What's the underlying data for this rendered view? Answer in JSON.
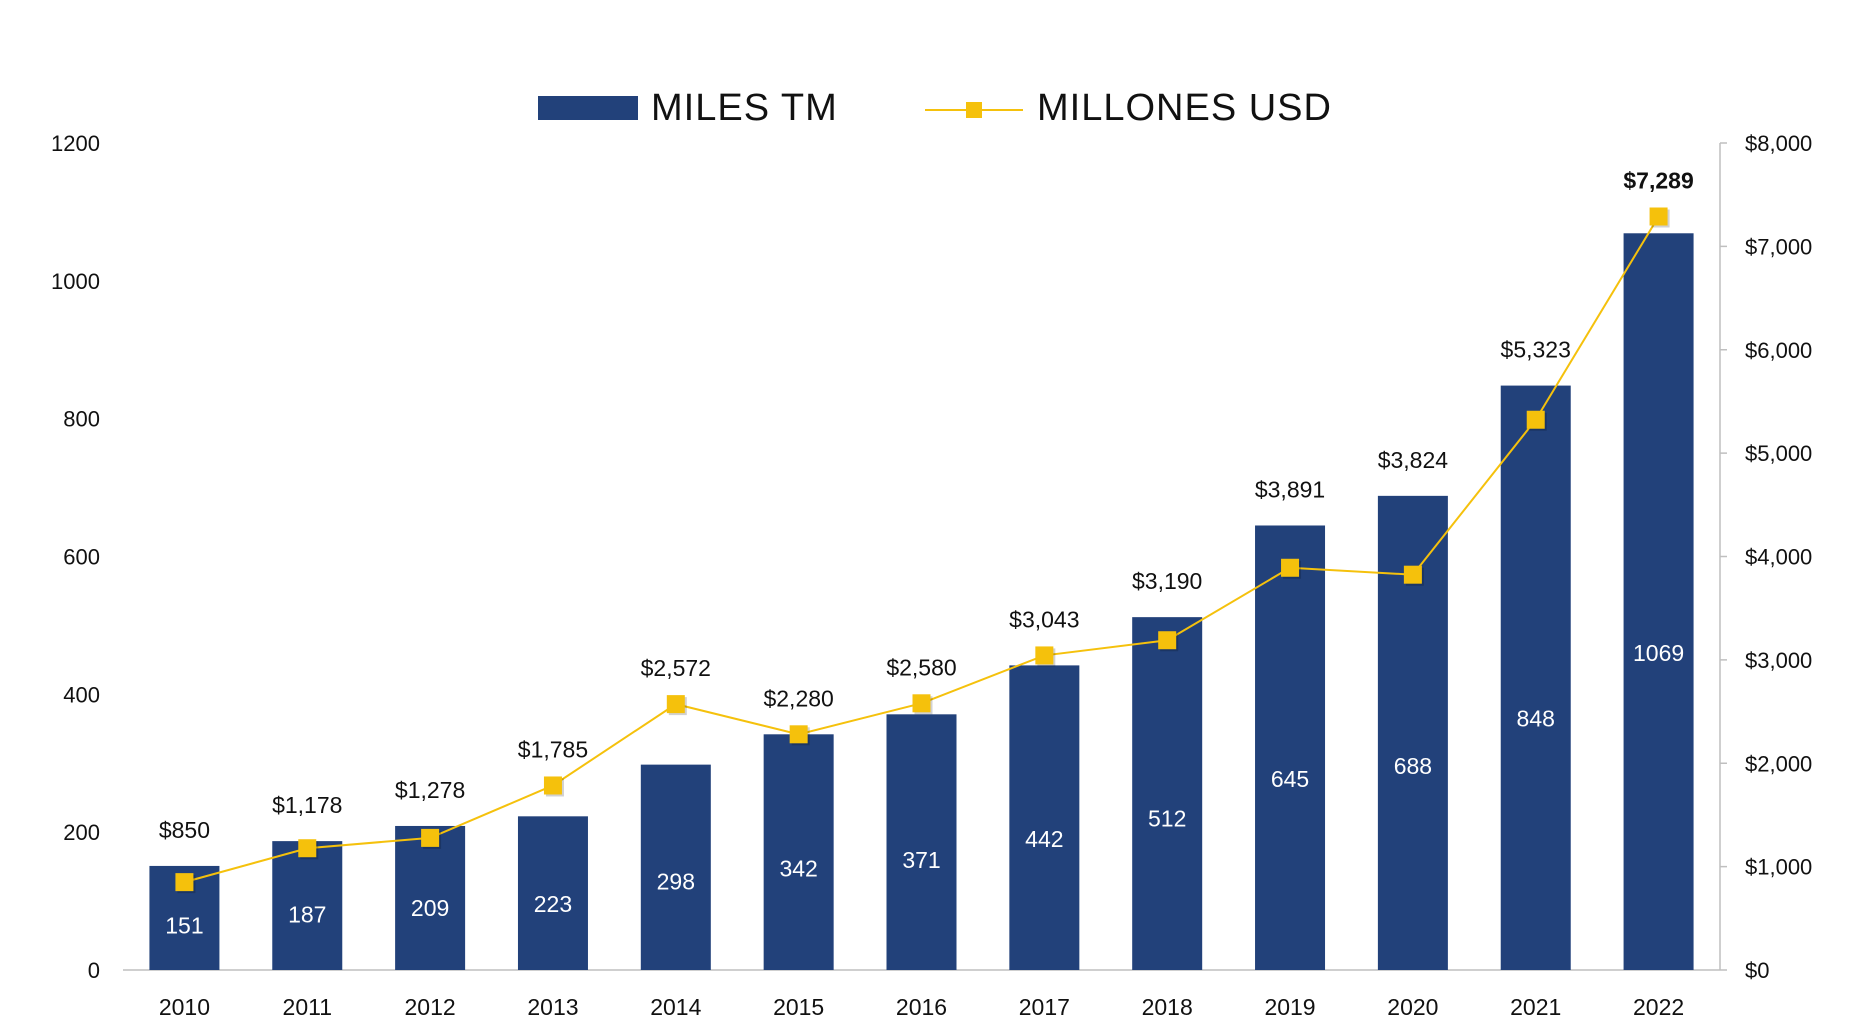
{
  "chart_data": {
    "type": "bar",
    "categories": [
      "2010",
      "2011",
      "2012",
      "2013",
      "2014",
      "2015",
      "2016",
      "2017",
      "2018",
      "2019",
      "2020",
      "2021",
      "2022"
    ],
    "series": [
      {
        "name": "MILES TM",
        "type": "bar",
        "axis": "left",
        "color": "#22417A",
        "values": [
          151,
          187,
          209,
          223,
          298,
          342,
          371,
          442,
          512,
          645,
          688,
          848,
          1069
        ],
        "labels": [
          "151",
          "187",
          "209",
          "223",
          "298",
          "342",
          "371",
          "442",
          "512",
          "645",
          "688",
          "848",
          "1069"
        ]
      },
      {
        "name": "MILLONES USD",
        "type": "line",
        "axis": "right",
        "color": "#F5C10C",
        "values": [
          850,
          1178,
          1278,
          1785,
          2572,
          2280,
          2580,
          3043,
          3190,
          3891,
          3824,
          5323,
          7289
        ],
        "labels": [
          "$850",
          "$1,178",
          "$1,278",
          "$1,785",
          "$2,572",
          "$2,280",
          "$2,580",
          "$3,043",
          "$3,190",
          "$3,891",
          "$3,824",
          "$5,323",
          "$7,289"
        ]
      }
    ],
    "y_left": {
      "range": [
        0,
        1200
      ],
      "ticks": [
        "0",
        "200",
        "400",
        "600",
        "800",
        "1000",
        "1200"
      ]
    },
    "y_right": {
      "range": [
        0,
        8000
      ],
      "ticks": [
        "$0",
        "$1,000",
        "$2,000",
        "$3,000",
        "$4,000",
        "$5,000",
        "$6,000",
        "$7,000",
        "$8,000"
      ]
    },
    "legend": {
      "position": "top-center",
      "items": [
        "MILES TM",
        "MILLONES USD"
      ]
    },
    "grid": false,
    "title": "",
    "xlabel": "",
    "ylabel": ""
  }
}
